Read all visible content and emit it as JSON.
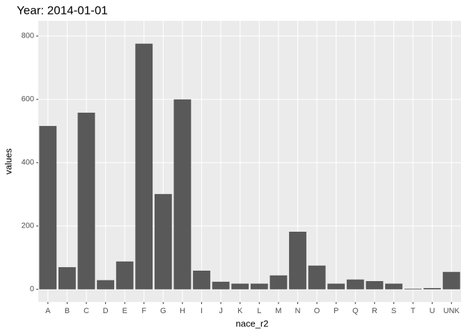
{
  "chart_data": {
    "type": "bar",
    "title": "Year: 2014-01-01",
    "x_label": "nace_r2",
    "y_label": "values",
    "categories": [
      "A",
      "B",
      "C",
      "D",
      "E",
      "F",
      "G",
      "H",
      "I",
      "J",
      "K",
      "L",
      "M",
      "N",
      "O",
      "P",
      "Q",
      "R",
      "S",
      "T",
      "U",
      "UNK"
    ],
    "values": [
      516,
      70,
      558,
      29,
      88,
      776,
      301,
      600,
      59,
      24,
      18,
      18,
      44,
      182,
      75,
      18,
      31,
      26,
      18,
      2,
      4,
      55
    ],
    "color": "#595959",
    "ylim": [
      -40,
      848
    ],
    "yticks": [
      0,
      200,
      400,
      600,
      800
    ],
    "grid": true
  }
}
